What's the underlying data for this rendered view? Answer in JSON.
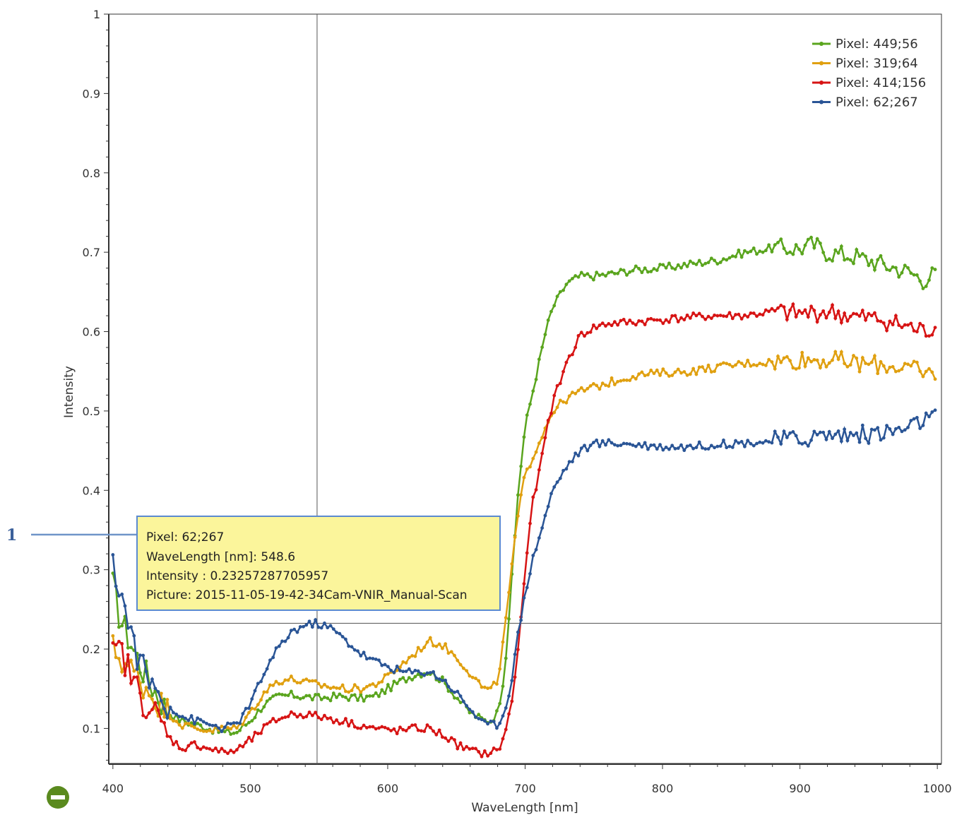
{
  "chart_data": {
    "type": "line",
    "xlabel": "WaveLength [nm]",
    "ylabel": "Intensity",
    "xlim": [
      397,
      1003
    ],
    "ylim": [
      0.055,
      1.0
    ],
    "x_ticks": [
      400,
      500,
      600,
      700,
      800,
      900,
      1000
    ],
    "x_tick_labels": [
      "400",
      "500",
      "600",
      "700",
      "800",
      "900",
      "1000"
    ],
    "y_ticks": [
      0.1,
      0.2,
      0.3,
      0.4,
      0.5,
      0.6,
      0.7,
      0.8,
      0.9,
      1.0
    ],
    "y_tick_labels": [
      "0.1",
      "0.2",
      "0.3",
      "0.4",
      "0.5",
      "0.6",
      "0.7",
      "0.8",
      "0.9",
      "1"
    ],
    "legend_position": "top-right",
    "crosshair": {
      "x": 548.6,
      "y": 0.23257287705957
    },
    "series": [
      {
        "name": "Pixel: 449;56",
        "color": "#5aa51e",
        "points": [
          [
            400,
            0.28
          ],
          [
            405,
            0.24
          ],
          [
            410,
            0.22
          ],
          [
            420,
            0.18
          ],
          [
            430,
            0.15
          ],
          [
            440,
            0.12
          ],
          [
            450,
            0.11
          ],
          [
            460,
            0.105
          ],
          [
            470,
            0.1
          ],
          [
            480,
            0.095
          ],
          [
            490,
            0.095
          ],
          [
            500,
            0.11
          ],
          [
            510,
            0.13
          ],
          [
            520,
            0.14
          ],
          [
            530,
            0.142
          ],
          [
            540,
            0.14
          ],
          [
            550,
            0.138
          ],
          [
            560,
            0.14
          ],
          [
            570,
            0.14
          ],
          [
            580,
            0.138
          ],
          [
            590,
            0.14
          ],
          [
            600,
            0.15
          ],
          [
            610,
            0.16
          ],
          [
            620,
            0.168
          ],
          [
            630,
            0.172
          ],
          [
            640,
            0.16
          ],
          [
            650,
            0.14
          ],
          [
            660,
            0.12
          ],
          [
            670,
            0.11
          ],
          [
            675,
            0.11
          ],
          [
            680,
            0.12
          ],
          [
            685,
            0.17
          ],
          [
            690,
            0.28
          ],
          [
            695,
            0.4
          ],
          [
            700,
            0.48
          ],
          [
            705,
            0.52
          ],
          [
            710,
            0.56
          ],
          [
            715,
            0.6
          ],
          [
            720,
            0.63
          ],
          [
            730,
            0.66
          ],
          [
            740,
            0.67
          ],
          [
            750,
            0.67
          ],
          [
            760,
            0.672
          ],
          [
            780,
            0.678
          ],
          [
            800,
            0.68
          ],
          [
            820,
            0.685
          ],
          [
            840,
            0.69
          ],
          [
            860,
            0.7
          ],
          [
            880,
            0.705
          ],
          [
            900,
            0.705
          ],
          [
            910,
            0.71
          ],
          [
            920,
            0.7
          ],
          [
            940,
            0.695
          ],
          [
            950,
            0.69
          ],
          [
            960,
            0.685
          ],
          [
            970,
            0.68
          ],
          [
            980,
            0.675
          ],
          [
            990,
            0.665
          ],
          [
            1000,
            0.675
          ]
        ]
      },
      {
        "name": "Pixel: 319;64",
        "color": "#e0a010",
        "points": [
          [
            400,
            0.2
          ],
          [
            405,
            0.19
          ],
          [
            410,
            0.18
          ],
          [
            420,
            0.16
          ],
          [
            430,
            0.14
          ],
          [
            440,
            0.12
          ],
          [
            450,
            0.105
          ],
          [
            460,
            0.1
          ],
          [
            470,
            0.098
          ],
          [
            480,
            0.1
          ],
          [
            490,
            0.1
          ],
          [
            500,
            0.12
          ],
          [
            510,
            0.145
          ],
          [
            520,
            0.16
          ],
          [
            530,
            0.162
          ],
          [
            540,
            0.158
          ],
          [
            550,
            0.155
          ],
          [
            560,
            0.152
          ],
          [
            570,
            0.15
          ],
          [
            580,
            0.15
          ],
          [
            590,
            0.155
          ],
          [
            600,
            0.165
          ],
          [
            610,
            0.18
          ],
          [
            620,
            0.195
          ],
          [
            630,
            0.21
          ],
          [
            640,
            0.205
          ],
          [
            650,
            0.19
          ],
          [
            660,
            0.17
          ],
          [
            670,
            0.15
          ],
          [
            675,
            0.148
          ],
          [
            680,
            0.16
          ],
          [
            685,
            0.22
          ],
          [
            690,
            0.3
          ],
          [
            695,
            0.37
          ],
          [
            700,
            0.42
          ],
          [
            705,
            0.44
          ],
          [
            710,
            0.46
          ],
          [
            715,
            0.48
          ],
          [
            720,
            0.5
          ],
          [
            730,
            0.515
          ],
          [
            740,
            0.525
          ],
          [
            760,
            0.535
          ],
          [
            780,
            0.545
          ],
          [
            800,
            0.548
          ],
          [
            820,
            0.55
          ],
          [
            840,
            0.555
          ],
          [
            860,
            0.56
          ],
          [
            880,
            0.562
          ],
          [
            900,
            0.565
          ],
          [
            920,
            0.565
          ],
          [
            940,
            0.56
          ],
          [
            960,
            0.558
          ],
          [
            980,
            0.555
          ],
          [
            990,
            0.545
          ],
          [
            1000,
            0.55
          ]
        ]
      },
      {
        "name": "Pixel: 414;156",
        "color": "#d71414",
        "points": [
          [
            400,
            0.19
          ],
          [
            405,
            0.2
          ],
          [
            410,
            0.18
          ],
          [
            420,
            0.14
          ],
          [
            430,
            0.12
          ],
          [
            440,
            0.09
          ],
          [
            450,
            0.075
          ],
          [
            460,
            0.08
          ],
          [
            470,
            0.075
          ],
          [
            480,
            0.07
          ],
          [
            490,
            0.072
          ],
          [
            500,
            0.085
          ],
          [
            510,
            0.1
          ],
          [
            520,
            0.112
          ],
          [
            530,
            0.118
          ],
          [
            540,
            0.118
          ],
          [
            550,
            0.115
          ],
          [
            560,
            0.112
          ],
          [
            570,
            0.108
          ],
          [
            580,
            0.104
          ],
          [
            590,
            0.1
          ],
          [
            600,
            0.098
          ],
          [
            610,
            0.097
          ],
          [
            620,
            0.1
          ],
          [
            630,
            0.1
          ],
          [
            640,
            0.092
          ],
          [
            650,
            0.08
          ],
          [
            660,
            0.072
          ],
          [
            670,
            0.068
          ],
          [
            680,
            0.072
          ],
          [
            685,
            0.09
          ],
          [
            690,
            0.13
          ],
          [
            695,
            0.2
          ],
          [
            700,
            0.3
          ],
          [
            705,
            0.38
          ],
          [
            710,
            0.42
          ],
          [
            715,
            0.47
          ],
          [
            720,
            0.51
          ],
          [
            730,
            0.56
          ],
          [
            740,
            0.595
          ],
          [
            750,
            0.605
          ],
          [
            760,
            0.61
          ],
          [
            780,
            0.612
          ],
          [
            800,
            0.615
          ],
          [
            820,
            0.618
          ],
          [
            840,
            0.62
          ],
          [
            860,
            0.62
          ],
          [
            880,
            0.625
          ],
          [
            900,
            0.622
          ],
          [
            920,
            0.625
          ],
          [
            940,
            0.618
          ],
          [
            960,
            0.615
          ],
          [
            980,
            0.605
          ],
          [
            990,
            0.6
          ],
          [
            1000,
            0.605
          ]
        ]
      },
      {
        "name": "Pixel: 62;267",
        "color": "#2a5596",
        "points": [
          [
            400,
            0.3
          ],
          [
            405,
            0.28
          ],
          [
            410,
            0.24
          ],
          [
            420,
            0.18
          ],
          [
            430,
            0.15
          ],
          [
            440,
            0.13
          ],
          [
            450,
            0.115
          ],
          [
            460,
            0.11
          ],
          [
            470,
            0.105
          ],
          [
            480,
            0.1
          ],
          [
            490,
            0.105
          ],
          [
            500,
            0.13
          ],
          [
            510,
            0.17
          ],
          [
            520,
            0.2
          ],
          [
            530,
            0.222
          ],
          [
            540,
            0.23
          ],
          [
            548.6,
            0.2326
          ],
          [
            560,
            0.225
          ],
          [
            570,
            0.21
          ],
          [
            580,
            0.195
          ],
          [
            590,
            0.185
          ],
          [
            600,
            0.178
          ],
          [
            610,
            0.172
          ],
          [
            620,
            0.17
          ],
          [
            630,
            0.172
          ],
          [
            640,
            0.162
          ],
          [
            650,
            0.145
          ],
          [
            660,
            0.125
          ],
          [
            670,
            0.105
          ],
          [
            680,
            0.105
          ],
          [
            685,
            0.12
          ],
          [
            690,
            0.16
          ],
          [
            695,
            0.22
          ],
          [
            700,
            0.27
          ],
          [
            705,
            0.31
          ],
          [
            710,
            0.34
          ],
          [
            715,
            0.37
          ],
          [
            720,
            0.4
          ],
          [
            730,
            0.43
          ],
          [
            740,
            0.45
          ],
          [
            750,
            0.458
          ],
          [
            760,
            0.46
          ],
          [
            780,
            0.458
          ],
          [
            800,
            0.455
          ],
          [
            820,
            0.455
          ],
          [
            840,
            0.458
          ],
          [
            860,
            0.46
          ],
          [
            880,
            0.462
          ],
          [
            900,
            0.465
          ],
          [
            920,
            0.47
          ],
          [
            940,
            0.47
          ],
          [
            960,
            0.472
          ],
          [
            980,
            0.478
          ],
          [
            990,
            0.49
          ],
          [
            1000,
            0.49
          ]
        ]
      }
    ]
  },
  "tooltip": {
    "lines": [
      "Pixel: 62;267",
      "WaveLength [nm]: 548.6",
      "Intensity : 0.23257287705957",
      "Picture: 2015-11-05-19-42-34Cam-VNIR_Manual-Scan"
    ]
  },
  "callout_label": "1",
  "zoom_out_icon": "minus-circle-icon"
}
